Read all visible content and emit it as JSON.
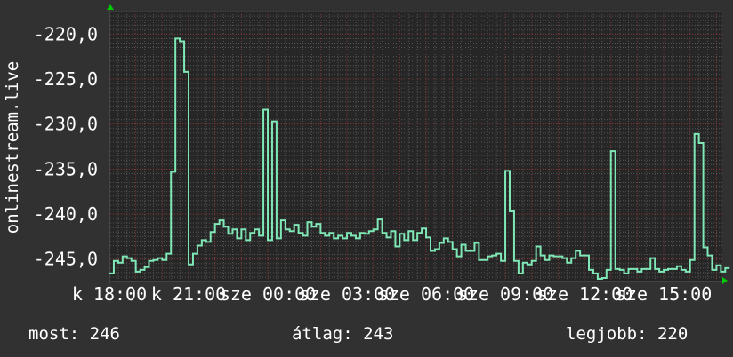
{
  "chart_data": {
    "type": "line",
    "ylabel": "onlinestream.live",
    "xlabel": "",
    "ylim": [
      -247.4,
      -217.5
    ],
    "y_ticks": [
      "-220,0",
      "-225,0",
      "-230,0",
      "-235,0",
      "-240,0",
      "-245,0"
    ],
    "y_tick_values": [
      -220,
      -225,
      -230,
      -235,
      -240,
      -245
    ],
    "x_tick_labels": [
      "k 18:00",
      "k 21:00",
      "sze 00:00",
      "sze 03:00",
      "sze 06:00",
      "sze 09:00",
      "sze 12:00",
      "sze 15:00"
    ],
    "x_start": "k 18:00",
    "x_step_minutes": 10,
    "grid": true,
    "colors": {
      "line": "#7fe8b6",
      "background": "#313131",
      "plot": "#262626",
      "major_grid": "#8a3a3a",
      "minor_grid": "#555555",
      "axis_arrow": "#00cc00"
    },
    "series": [
      {
        "values": [
          -246.6,
          -245.2,
          -245.4,
          -244.7,
          -244.9,
          -245.2,
          -246.4,
          -246.2,
          -245.9,
          -245.2,
          -245.1,
          -244.9,
          -245.1,
          -244.4,
          -235.3,
          -220.5,
          -220.8,
          -224.2,
          -245.6,
          -244.4,
          -243.5,
          -242.9,
          -243.1,
          -242.0,
          -241.1,
          -240.7,
          -241.4,
          -242.2,
          -241.7,
          -242.7,
          -241.7,
          -242.9,
          -242.1,
          -241.7,
          -242.4,
          -228.4,
          -242.9,
          -229.7,
          -242.7,
          -240.7,
          -241.7,
          -241.9,
          -241.2,
          -242.1,
          -242.4,
          -240.9,
          -241.4,
          -241.1,
          -242.1,
          -242.4,
          -242.1,
          -242.7,
          -242.4,
          -242.7,
          -242.1,
          -242.4,
          -242.7,
          -242.1,
          -242.2,
          -241.9,
          -241.7,
          -240.6,
          -242.1,
          -242.6,
          -241.9,
          -243.6,
          -242.2,
          -242.9,
          -241.9,
          -242.9,
          -242.1,
          -241.6,
          -242.6,
          -244.1,
          -243.9,
          -243.2,
          -242.7,
          -243.1,
          -243.9,
          -244.7,
          -243.4,
          -244.1,
          -244.1,
          -243.2,
          -245.1,
          -245.1,
          -244.7,
          -244.6,
          -244.4,
          -245.2,
          -235.2,
          -239.7,
          -245.2,
          -246.6,
          -245.4,
          -245.6,
          -245.2,
          -243.6,
          -244.6,
          -245.1,
          -244.6,
          -244.7,
          -244.7,
          -244.9,
          -245.4,
          -244.9,
          -244.1,
          -244.6,
          -244.6,
          -246.2,
          -246.6,
          -247.2,
          -247.1,
          -246.2,
          -233.0,
          -246.1,
          -246.2,
          -246.6,
          -246.1,
          -246.1,
          -246.4,
          -246.1,
          -246.1,
          -244.9,
          -246.1,
          -246.4,
          -246.2,
          -246.1,
          -246.1,
          -245.8,
          -246.2,
          -246.4,
          -245.1,
          -231.1,
          -232.1,
          -243.7,
          -244.6,
          -246.2,
          -245.7,
          -246.4,
          -246.0
        ]
      }
    ]
  },
  "legend": {
    "current": "most: 246",
    "average": "átlag: 243",
    "max": "legjobb: 220"
  }
}
